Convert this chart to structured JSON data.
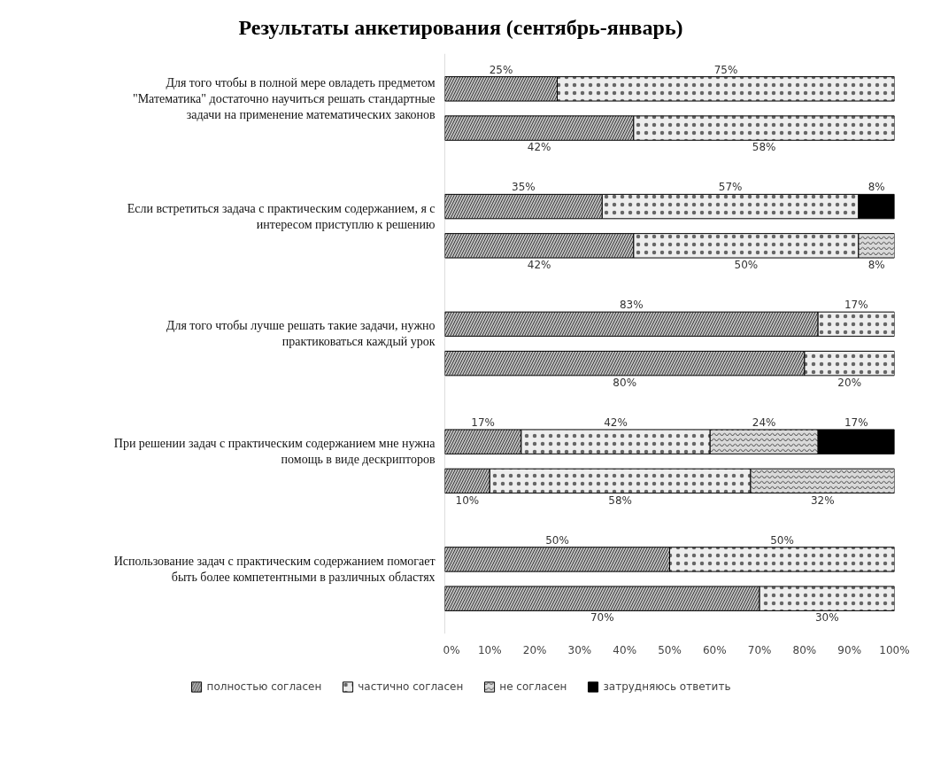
{
  "chart_data": {
    "type": "bar",
    "orientation": "horizontal",
    "stacked": true,
    "title": "Результаты анкетирования (сентябрь-январь)",
    "categories": [
      "Для того чтобы в полной мере овладеть предметом \"Математика\" достаточно научиться решать стандартные задачи на применение математических законов",
      null,
      "Если встретиться задача с практическим содержанием, я с интересом приступлю к решению",
      null,
      "Для того чтобы лучше решать такие задачи, нужно практиковаться каждый урок",
      null,
      "При решении задач с практическим содержанием мне нужна помощь в виде дескрипторов",
      null,
      "Использование задач с практическим содержанием помогает быть более компетентными в различных областях",
      null
    ],
    "series": [
      {
        "name": "полностью согласен",
        "color": "#bfbfbf",
        "values": [
          25,
          42,
          35,
          42,
          83,
          80,
          17,
          10,
          50,
          70
        ],
        "value_labels": [
          "25%",
          "42%",
          "35%",
          "42%",
          "83%",
          "80%",
          "17%",
          "10%",
          "50%",
          "70%"
        ]
      },
      {
        "name": "частично согласен",
        "color": "#ededed",
        "values": [
          75,
          58,
          57,
          50,
          17,
          20,
          42,
          58,
          50,
          30
        ],
        "value_labels": [
          "75%",
          "58%",
          "57%",
          "50%",
          "17%",
          "20%",
          "42%",
          "58%",
          "50%",
          "30%"
        ]
      },
      {
        "name": "не согласен",
        "color": "#d9d9d9",
        "values": [
          null,
          null,
          null,
          8,
          null,
          null,
          24,
          32,
          null,
          null
        ],
        "value_labels": [
          null,
          null,
          null,
          "8%",
          null,
          null,
          "24%",
          "32%",
          null,
          null
        ]
      },
      {
        "name": "затрудняюсь ответить",
        "color": "#000000",
        "values": [
          null,
          null,
          8,
          null,
          null,
          null,
          17,
          null,
          null,
          null
        ],
        "value_labels": [
          null,
          null,
          "8%",
          null,
          null,
          null,
          "17%",
          null,
          null,
          null
        ]
      }
    ],
    "xlim": [
      0,
      100
    ],
    "xticks": [
      {
        "value": 0,
        "label": "0%"
      },
      {
        "value": 10,
        "label": "10%"
      },
      {
        "value": 20,
        "label": "20%"
      },
      {
        "value": 30,
        "label": "30%"
      },
      {
        "value": 40,
        "label": "40%"
      },
      {
        "value": 50,
        "label": "50%"
      },
      {
        "value": 60,
        "label": "60%"
      },
      {
        "value": 70,
        "label": "70%"
      },
      {
        "value": 80,
        "label": "80%"
      },
      {
        "value": 90,
        "label": "90%"
      },
      {
        "value": 100,
        "label": "100%"
      }
    ],
    "grid": false,
    "legend": "bottom"
  }
}
